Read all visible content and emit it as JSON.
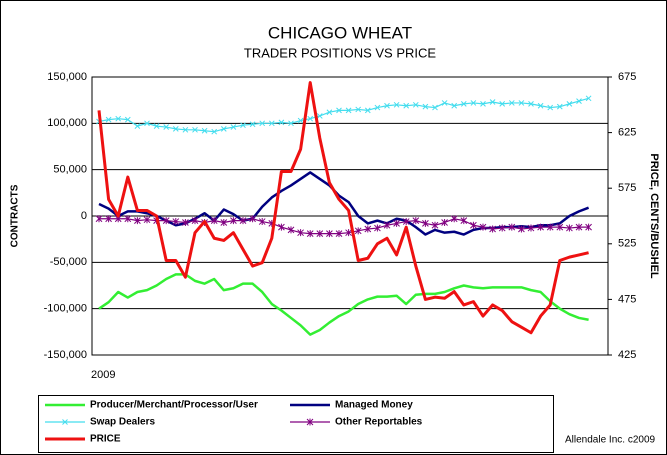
{
  "chart_data": {
    "type": "line",
    "title": "CHICAGO WHEAT",
    "subtitle": "TRADER POSITIONS VS PRICE",
    "ylabel": "CONTRACTS",
    "y2label": "PRICE, CENTS/BUSHEL",
    "annotation": "Allendale Inc. c2009",
    "categories": [
      "2009",
      null,
      null,
      null,
      null,
      null,
      null,
      null,
      null,
      null,
      null,
      null,
      null,
      null,
      null,
      null,
      null,
      null,
      null,
      null,
      null,
      null,
      null,
      null,
      null,
      null,
      null,
      null,
      null,
      null,
      null,
      null,
      null,
      null,
      null,
      null,
      null,
      null,
      null,
      null,
      null,
      null,
      null,
      null,
      null,
      null,
      null,
      null,
      null,
      null,
      null,
      null
    ],
    "ylim": [
      -150000,
      150000
    ],
    "yticks": [
      {
        "value": -150000,
        "label": "-150,000"
      },
      {
        "value": -100000,
        "label": "-100,000"
      },
      {
        "value": -50000,
        "label": "-50,000"
      },
      0,
      {
        "value": 50000,
        "label": "50,000"
      },
      {
        "value": 100000,
        "label": "100,000"
      },
      {
        "value": 150000,
        "label": "150,000"
      }
    ],
    "y2lim": [
      425,
      675
    ],
    "y2ticks": [
      425,
      475,
      525,
      575,
      625,
      675
    ],
    "grid": true,
    "legend": "bottom",
    "series": [
      {
        "name": "Producer/Merchant/Processor/User",
        "color": "#33ee33",
        "marker": "none",
        "values": [
          -100000,
          -93000,
          -82000,
          -88000,
          -82000,
          -80000,
          -75000,
          -68000,
          -63000,
          -63000,
          -70000,
          -73000,
          -68000,
          -80000,
          -78000,
          -73000,
          -73000,
          -82000,
          -95000,
          -102000,
          -110000,
          -118000,
          -128000,
          -123000,
          -115000,
          -108000,
          -103000,
          -95000,
          -90000,
          -87000,
          -87000,
          -86000,
          -95000,
          -85000,
          -84000,
          -84000,
          -82000,
          -78000,
          -75000,
          -77000,
          -78000,
          -77000,
          -77000,
          -77000,
          -77000,
          -80000,
          -82000,
          -92000,
          -100000,
          -106000,
          -110000,
          -112000
        ]
      },
      {
        "name": "Managed Money",
        "color": "#000080",
        "marker": "none",
        "values": [
          13000,
          8000,
          0,
          5000,
          5000,
          3000,
          0,
          -5000,
          -10000,
          -8000,
          -3000,
          3000,
          -5000,
          7000,
          2000,
          -5000,
          -3000,
          10000,
          20000,
          27000,
          33000,
          40000,
          47000,
          40000,
          33000,
          22000,
          15000,
          0,
          -8000,
          -5000,
          -8000,
          -3000,
          -5000,
          -12000,
          -20000,
          -15000,
          -18000,
          -17000,
          -20000,
          -15000,
          -13000,
          -13000,
          -12000,
          -12000,
          -11000,
          -12000,
          -10000,
          -10000,
          -8000,
          0,
          5000,
          9000
        ]
      },
      {
        "name": "Swap Dealers",
        "color": "#44ddee",
        "marker": "x",
        "values": [
          102000,
          104000,
          105000,
          104000,
          97000,
          100000,
          97000,
          96000,
          94000,
          93000,
          93000,
          92000,
          91000,
          94000,
          96000,
          98000,
          99000,
          100000,
          100000,
          101000,
          100000,
          103000,
          105000,
          108000,
          112000,
          114000,
          114000,
          115000,
          114000,
          117000,
          119000,
          120000,
          119000,
          120000,
          118000,
          117000,
          122000,
          119000,
          121000,
          122000,
          121000,
          123000,
          121000,
          122000,
          122000,
          121000,
          119000,
          117000,
          118000,
          121000,
          124000,
          127000
        ]
      },
      {
        "name": "Other Reportables",
        "color": "#800080",
        "marker": "star",
        "values": [
          -3000,
          -3000,
          -3000,
          -3000,
          -5000,
          -4000,
          -5000,
          -5000,
          -6000,
          -7000,
          -5000,
          -7000,
          -5000,
          -7000,
          -5000,
          -5000,
          -3000,
          -6000,
          -8000,
          -12000,
          -15000,
          -18000,
          -19000,
          -19000,
          -19000,
          -19000,
          -18000,
          -16000,
          -14000,
          -13000,
          -10000,
          -8000,
          -6000,
          -5000,
          -8000,
          -10000,
          -7000,
          -3000,
          -5000,
          -10000,
          -12000,
          -14000,
          -13000,
          -12000,
          -14000,
          -13000,
          -12000,
          -12000,
          -12000,
          -13000,
          -12000,
          -12000
        ]
      },
      {
        "name": "PRICE",
        "color": "#ee1111",
        "marker": "none",
        "axis": "y2",
        "values": [
          645,
          565,
          550,
          585,
          555,
          555,
          550,
          510,
          510,
          495,
          535,
          545,
          530,
          528,
          535,
          520,
          505,
          508,
          530,
          590,
          590,
          610,
          670,
          620,
          580,
          565,
          555,
          510,
          512,
          525,
          530,
          515,
          540,
          505,
          475,
          477,
          476,
          482,
          470,
          473,
          460,
          470,
          465,
          455,
          450,
          445,
          460,
          470,
          510,
          513,
          515,
          517
        ]
      }
    ]
  }
}
